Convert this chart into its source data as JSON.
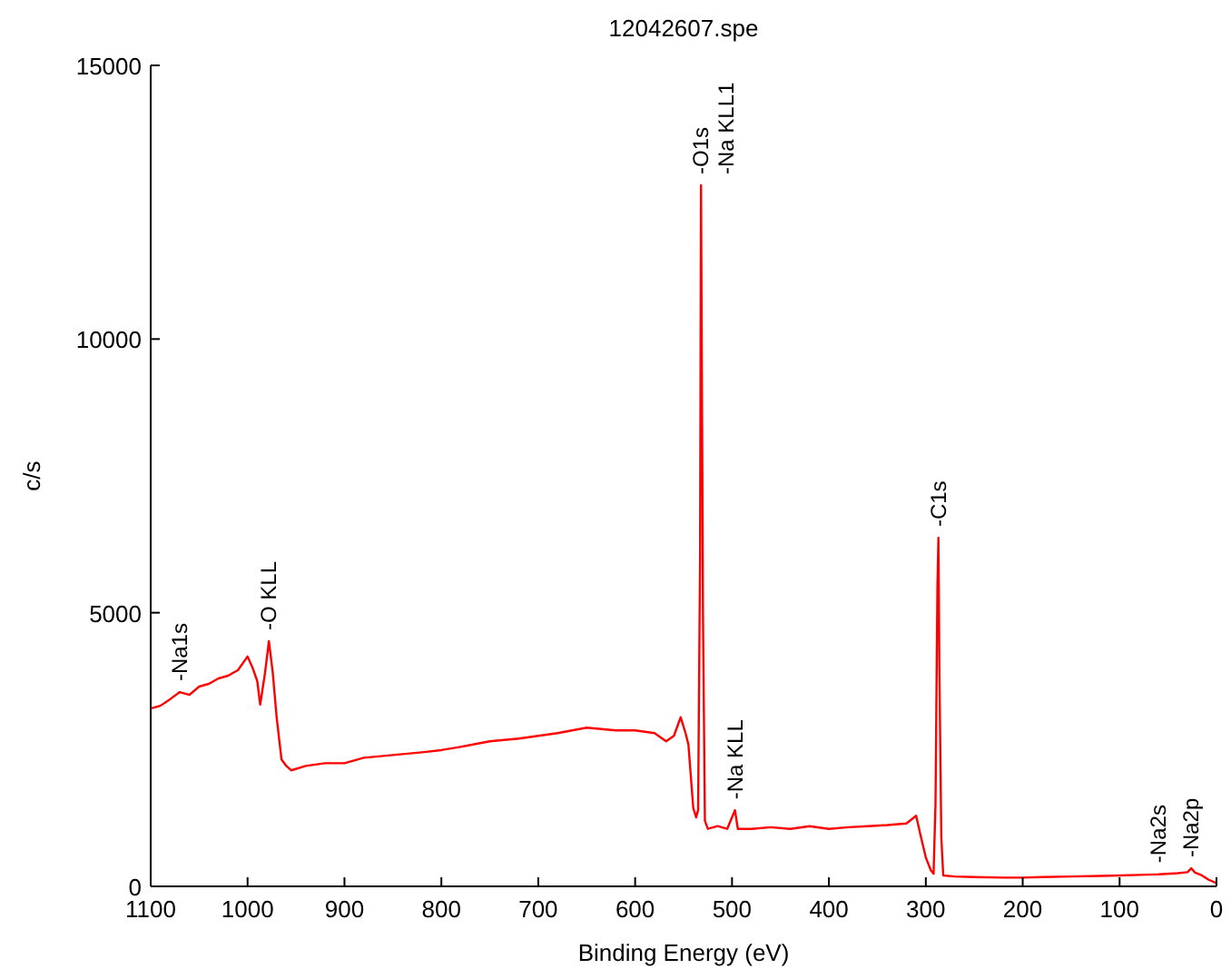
{
  "chart_data": {
    "type": "line",
    "title": "12042607.spe",
    "xlabel": "Binding Energy (eV)",
    "ylabel": "c/s",
    "xlim": [
      1100,
      0
    ],
    "xticks": [
      1100,
      1000,
      900,
      800,
      700,
      600,
      500,
      400,
      300,
      200,
      100,
      0
    ],
    "ylim": [
      0,
      15000
    ],
    "yticks": [
      0,
      5000,
      10000,
      15000
    ],
    "grid": false,
    "marker": "none",
    "line_style": "solid",
    "series": [
      {
        "color": "#ff0000",
        "x": [
          1100,
          1090,
          1080,
          1070,
          1060,
          1050,
          1040,
          1030,
          1020,
          1010,
          1000,
          995,
          990,
          987,
          982,
          978,
          974,
          970,
          965,
          960,
          955,
          940,
          920,
          900,
          880,
          850,
          820,
          800,
          780,
          750,
          720,
          700,
          680,
          650,
          620,
          600,
          580,
          568,
          560,
          553,
          548,
          545,
          540,
          537,
          535,
          533,
          532,
          530,
          528,
          525,
          515,
          505,
          497,
          494,
          480,
          460,
          440,
          420,
          400,
          380,
          360,
          340,
          320,
          310,
          305,
          300,
          295,
          292,
          290,
          288,
          287,
          286,
          284,
          282,
          270,
          250,
          220,
          200,
          180,
          150,
          120,
          100,
          80,
          60,
          40,
          30,
          26,
          22,
          15,
          8,
          0
        ],
        "values": [
          3250,
          3300,
          3420,
          3550,
          3500,
          3650,
          3700,
          3800,
          3850,
          3950,
          4200,
          4000,
          3750,
          3320,
          3900,
          4480,
          3900,
          3090,
          2320,
          2200,
          2120,
          2200,
          2250,
          2250,
          2350,
          2400,
          2450,
          2490,
          2550,
          2650,
          2700,
          2750,
          2800,
          2900,
          2850,
          2850,
          2800,
          2650,
          2750,
          3090,
          2800,
          2590,
          1430,
          1260,
          1400,
          6000,
          12810,
          5000,
          1200,
          1050,
          1100,
          1050,
          1390,
          1050,
          1050,
          1080,
          1050,
          1100,
          1050,
          1080,
          1100,
          1120,
          1150,
          1290,
          900,
          530,
          300,
          230,
          1500,
          5500,
          6370,
          4000,
          900,
          200,
          180,
          170,
          160,
          160,
          170,
          180,
          190,
          200,
          210,
          220,
          240,
          260,
          330,
          250,
          200,
          120,
          60
        ]
      }
    ],
    "annotations": [
      {
        "text": "-Na1s",
        "x": 1070,
        "y": 3550
      },
      {
        "text": "-O KLL",
        "x": 978,
        "y": 4480
      },
      {
        "text": "-O1s",
        "x": 532,
        "y": 12810
      },
      {
        "text": "-Na KLL1",
        "x": 532,
        "y": 12810
      },
      {
        "text": "-Na KLL",
        "x": 497,
        "y": 1390
      },
      {
        "text": "-C1s",
        "x": 287,
        "y": 6370
      },
      {
        "text": "-Na2s",
        "x": 60,
        "y": 230
      },
      {
        "text": "-Na2p",
        "x": 26,
        "y": 330
      }
    ]
  }
}
